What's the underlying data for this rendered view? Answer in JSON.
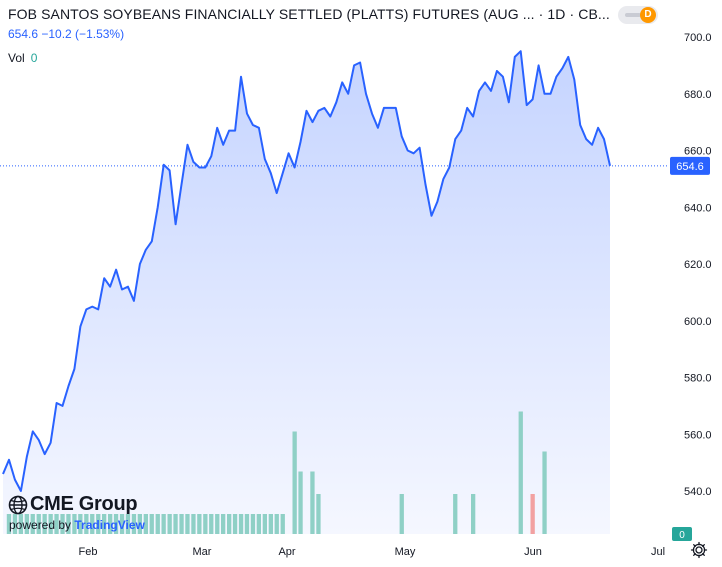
{
  "header": {
    "title": "FOB SANTOS SOYBEANS FINANCIALLY SETTLED (PLATTS) FUTURES (AUG ... · 1D · CB...",
    "quote": "654.6  −10.2 (−1.53%)",
    "vol_label": "Vol",
    "vol_value": "0",
    "toggle_letter": "D"
  },
  "branding": {
    "logo_text": "CME Group",
    "powered_prefix": "powered by",
    "powered_brand": "TradingView"
  },
  "icons": {
    "settings": "gear-icon",
    "logo": "cme-globe-icon"
  },
  "colors": {
    "line": "#2962ff",
    "area_top": "#c9d7ff",
    "area_bottom": "#f4f6ff",
    "vol_up": "#8fd0c6",
    "vol_down": "#f2a1a1",
    "last_price_bg": "#2962ff",
    "vol_badge_bg": "#26a69a"
  },
  "chart_data": {
    "type": "area",
    "x_ticks": [
      "Feb",
      "Mar",
      "Apr",
      "May",
      "Jun",
      "Jul"
    ],
    "y_ticks": [
      "700.0",
      "680.0",
      "660.0",
      "640.0",
      "620.0",
      "600.0",
      "580.0",
      "560.0",
      "540.0"
    ],
    "ylim": [
      524,
      706
    ],
    "last_price": "654.6",
    "vol_badge": "0",
    "price_series": [
      546,
      551,
      544,
      540,
      552,
      561,
      558,
      553,
      557,
      571,
      570,
      577,
      583,
      598,
      604,
      605,
      604,
      615,
      612,
      618,
      611,
      612,
      607,
      620,
      625,
      628,
      640,
      655,
      653,
      634,
      648,
      662,
      656,
      654,
      654,
      658,
      668,
      662,
      667,
      667,
      686,
      673,
      669,
      668,
      657,
      652,
      645,
      652,
      659,
      654,
      663,
      674,
      670,
      674,
      675,
      672,
      677,
      684,
      680,
      690,
      691,
      680,
      673,
      668,
      675,
      675,
      675,
      665,
      660,
      659,
      661,
      648,
      637,
      642,
      650,
      654,
      664,
      667,
      675,
      672,
      681,
      684,
      681,
      688,
      686,
      677,
      693,
      695,
      676,
      678,
      690,
      680,
      680,
      686,
      689,
      693,
      685,
      669,
      664,
      662,
      668,
      664,
      654.6
    ],
    "volume": {
      "base_start": 1,
      "base_end": 47,
      "spikes": [
        {
          "i": 49,
          "v": 41,
          "dir": "up"
        },
        {
          "i": 50,
          "v": 25,
          "dir": "up"
        },
        {
          "i": 52,
          "v": 25,
          "dir": "up"
        },
        {
          "i": 53,
          "v": 16,
          "dir": "up"
        },
        {
          "i": 67,
          "v": 16,
          "dir": "up"
        },
        {
          "i": 76,
          "v": 16,
          "dir": "up"
        },
        {
          "i": 79,
          "v": 16,
          "dir": "up"
        },
        {
          "i": 87,
          "v": 49,
          "dir": "up"
        },
        {
          "i": 89,
          "v": 16,
          "dir": "down"
        },
        {
          "i": 91,
          "v": 33,
          "dir": "up"
        }
      ],
      "base_value": 8,
      "max": 50
    }
  }
}
